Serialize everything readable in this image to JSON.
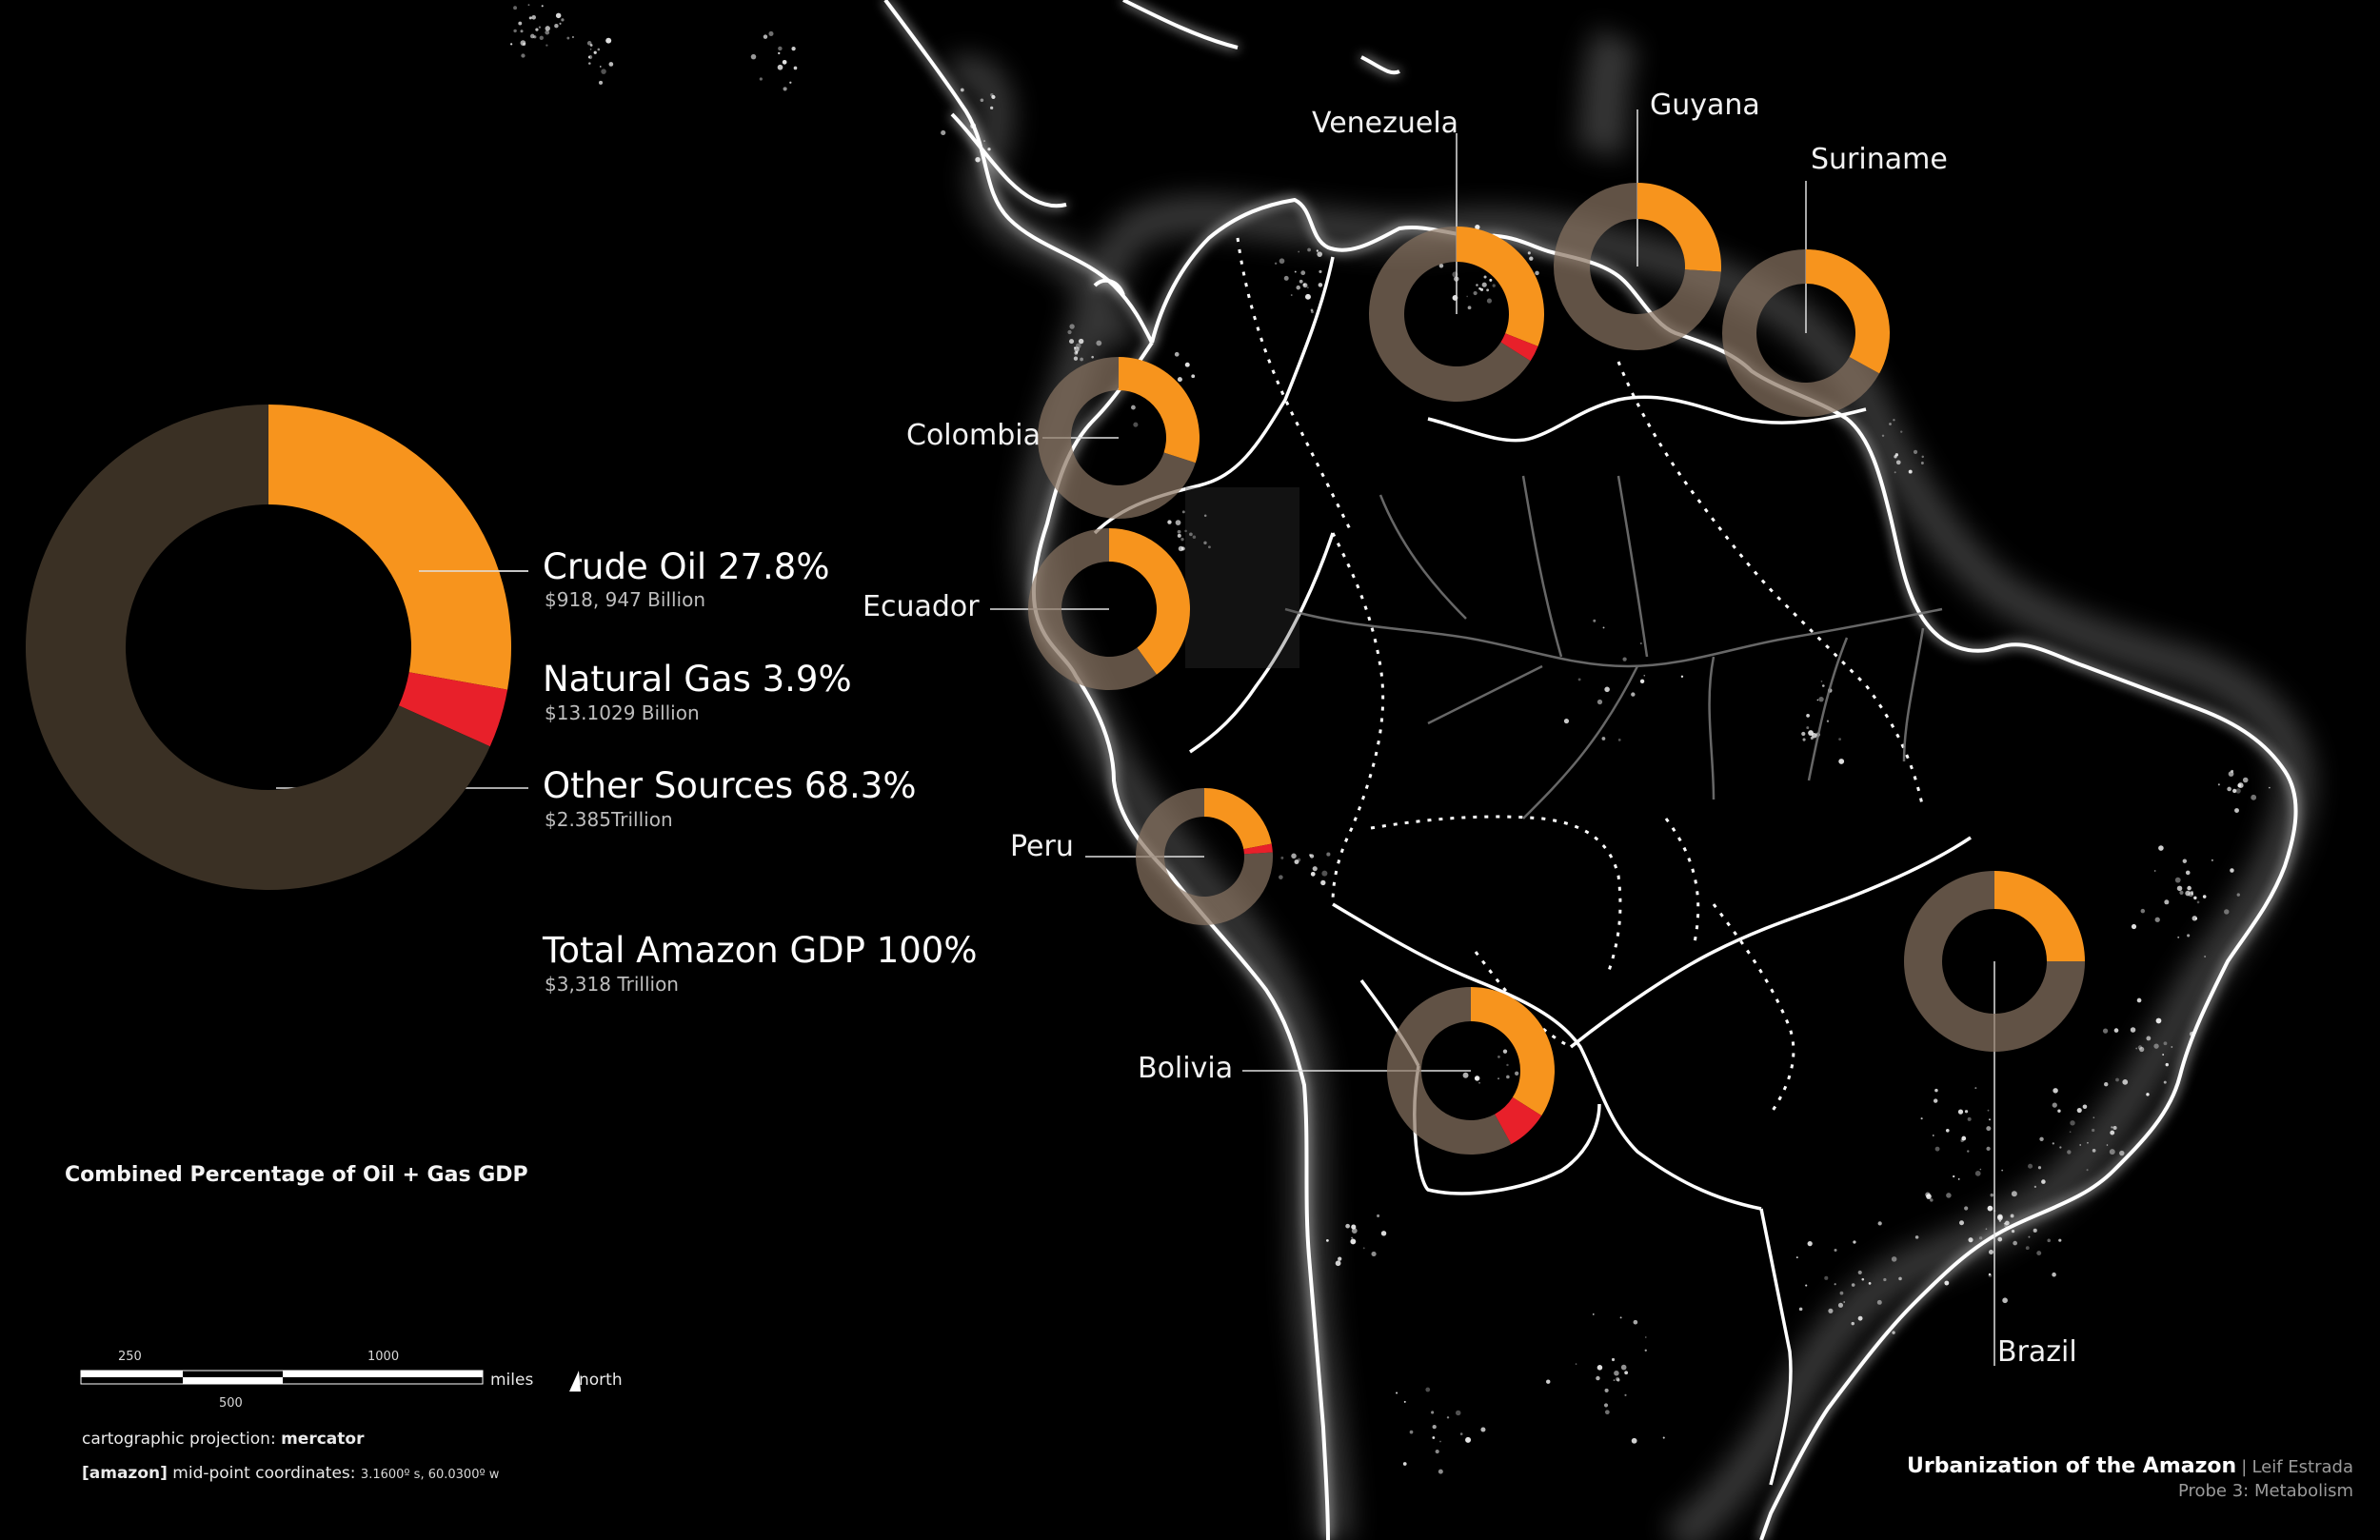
{
  "colors": {
    "oil": "#f7941d",
    "gas": "#e8202a",
    "other_legend": "#3a3024",
    "other_map": "#8a7563",
    "coast": "#ffffff"
  },
  "legend": {
    "items": [
      {
        "name": "Crude Oil",
        "percent": 27.8,
        "label": "Crude Oil 27.8%",
        "sub": "$918, 947 Billion"
      },
      {
        "name": "Natural Gas",
        "percent": 3.9,
        "label": "Natural Gas 3.9%",
        "sub": "$13.1029 Billion"
      },
      {
        "name": "Other Sources",
        "percent": 68.3,
        "label": "Other Sources 68.3%",
        "sub": "$2.385Trillion"
      }
    ],
    "total_label": "Total Amazon GDP 100%",
    "total_sub": "$3,318 Trillion",
    "heading": "Combined Percentage of Oil + Gas GDP"
  },
  "countries": [
    {
      "name": "Venezuela",
      "oil": 31,
      "gas": 3
    },
    {
      "name": "Guyana",
      "oil": 26,
      "gas": 0
    },
    {
      "name": "Suriname",
      "oil": 33,
      "gas": 0
    },
    {
      "name": "Colombia",
      "oil": 30,
      "gas": 0
    },
    {
      "name": "Ecuador",
      "oil": 40,
      "gas": 0
    },
    {
      "name": "Peru",
      "oil": 22,
      "gas": 2
    },
    {
      "name": "Bolivia",
      "oil": 34,
      "gas": 8
    },
    {
      "name": "Brazil",
      "oil": 25,
      "gas": 0
    }
  ],
  "scale": {
    "ticks_top": [
      "250",
      "1000"
    ],
    "ticks_bottom": [
      "500"
    ],
    "unit": "miles",
    "north": "north"
  },
  "meta": {
    "projection_label": "cartographic projection:",
    "projection_value": "mercator",
    "midpoint_tag": "[amazon]",
    "midpoint_label": "mid-point coordinates:",
    "midpoint_value": "3.1600º s,  60.0300º w"
  },
  "credit": {
    "title": "Urbanization of the Amazon",
    "separator": "|",
    "author": "Leif Estrada",
    "subtitle": "Probe 3: Metabolism"
  }
}
